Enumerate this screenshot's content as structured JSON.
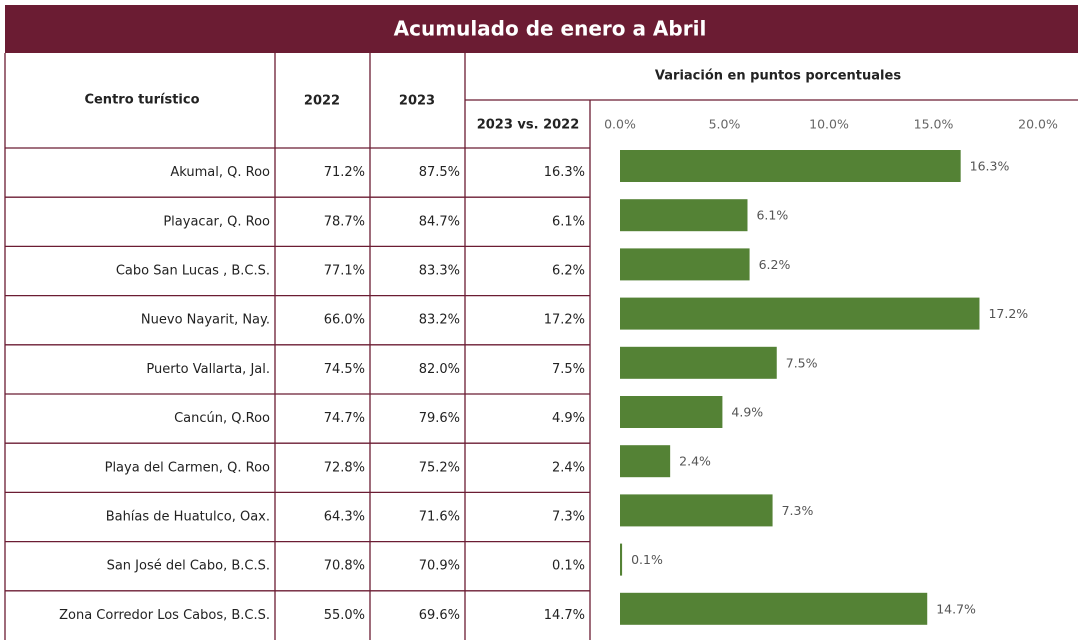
{
  "title": "Acumulado de enero a Abril",
  "table": {
    "headers": [
      "Centro turístico",
      "2022",
      "2023",
      "2023 vs. 2022"
    ],
    "rows": [
      [
        "Akumal, Q. Roo",
        "71.2%",
        "87.5%",
        "16.3%"
      ],
      [
        "Playacar, Q. Roo",
        "78.7%",
        "84.7%",
        "6.1%"
      ],
      [
        "Cabo San Lucas , B.C.S.",
        "77.1%",
        "83.3%",
        "6.2%"
      ],
      [
        "Nuevo Nayarit, Nay.",
        "66.0%",
        "83.2%",
        "17.2%"
      ],
      [
        "Puerto Vallarta, Jal.",
        "74.5%",
        "82.0%",
        "7.5%"
      ],
      [
        "Cancún, Q.Roo",
        "74.7%",
        "79.6%",
        "4.9%"
      ],
      [
        "Playa del Carmen, Q. Roo",
        "72.8%",
        "75.2%",
        "2.4%"
      ],
      [
        "Bahías de Huatulco, Oax.",
        "64.3%",
        "71.6%",
        "7.3%"
      ],
      [
        "San José del Cabo, B.C.S.",
        "70.8%",
        "70.9%",
        "0.1%"
      ],
      [
        "Zona Corredor Los Cabos, B.C.S.",
        "55.0%",
        "69.6%",
        "14.7%"
      ]
    ]
  },
  "chart_data": {
    "type": "bar",
    "title": "Variación en puntos porcentuales",
    "values": [
      16.3,
      6.1,
      6.2,
      17.2,
      7.5,
      4.9,
      2.4,
      7.3,
      0.1,
      14.7
    ],
    "value_labels": [
      "16.3%",
      "6.1%",
      "6.2%",
      "17.2%",
      "7.5%",
      "4.9%",
      "2.4%",
      "7.3%",
      "0.1%",
      "14.7%"
    ],
    "color": "#548235",
    "xlim": [
      0,
      20
    ],
    "xticks": [
      {
        "value": 0,
        "label": "0.0%"
      },
      {
        "value": 5,
        "label": "5.0%"
      },
      {
        "value": 10,
        "label": "10.0%"
      },
      {
        "value": 15,
        "label": "15.0%"
      },
      {
        "value": 20,
        "label": "20.0%"
      }
    ]
  }
}
